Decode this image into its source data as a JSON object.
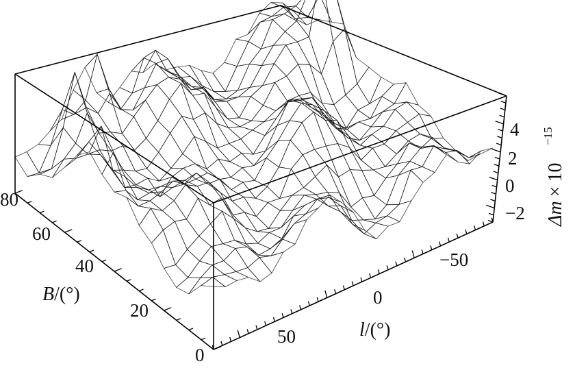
{
  "chart_data": {
    "type": "surface3d",
    "title": "",
    "x_axis": {
      "label": "l",
      "unit": "(°)",
      "ticks": [
        "50",
        "0",
        "−50"
      ],
      "tick_values": [
        50,
        0,
        -50
      ],
      "range": [
        80,
        -80
      ]
    },
    "y_axis": {
      "label": "B",
      "unit": "(°)",
      "ticks": [
        "0",
        "20",
        "40",
        "60",
        "80"
      ],
      "tick_values": [
        0,
        20,
        40,
        60,
        80
      ],
      "range": [
        0,
        80
      ]
    },
    "z_axis": {
      "label_symbol": "Δm",
      "label_times": "×",
      "label_base": "10",
      "label_exponent": "−15",
      "ticks": [
        "−2",
        "0",
        "2",
        "4"
      ],
      "tick_values": [
        -2,
        0,
        2,
        4
      ],
      "range": [
        -3,
        6
      ]
    },
    "surface": {
      "grid_l": 24,
      "grid_b": 16,
      "base_value": 0.6,
      "colors": [
        "#2b2fe0",
        "#5a5cf5",
        "#7fe84a",
        "#e8ff6a",
        "#f090d8",
        "#3b3bd0"
      ],
      "peaks": [
        {
          "l": -70,
          "b": 60,
          "dm": 5.5
        },
        {
          "l": 60,
          "b": 70,
          "dm": 4.0
        },
        {
          "l": 40,
          "b": 75,
          "dm": 3.2
        },
        {
          "l": 75,
          "b": 50,
          "dm": 3.8
        },
        {
          "l": 10,
          "b": 75,
          "dm": 2.5
        }
      ]
    }
  }
}
